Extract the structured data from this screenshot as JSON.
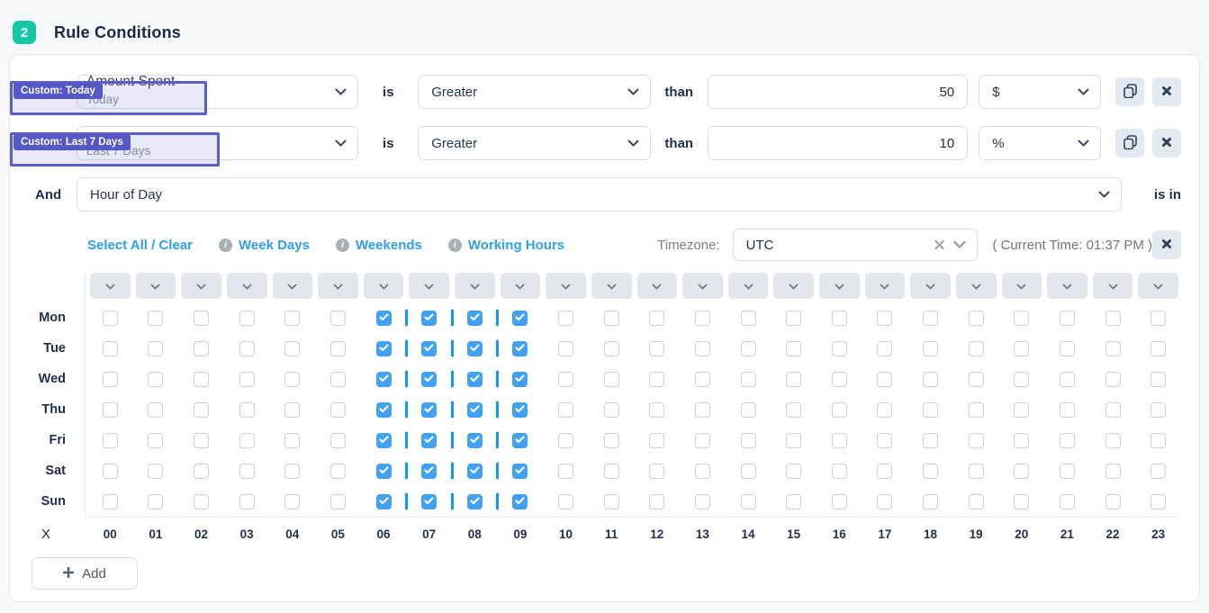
{
  "colors": {
    "accent_teal": "#14c7a5",
    "overlay_purple": "#5558c7",
    "link_blue": "#2f9fe8",
    "checked_blue": "#41a1f2",
    "separator_blue": "#1a97ea"
  },
  "header": {
    "step": "2",
    "title": "Rule Conditions"
  },
  "conditions": [
    {
      "connector": "",
      "badge": "Custom: Today",
      "metric": "Amount Spent",
      "metric_period": "Today",
      "is_label": "is",
      "operator": "Greater",
      "than_label": "than",
      "value": "50",
      "unit": "$"
    },
    {
      "connector": "And",
      "badge": "Custom: Last 7 Days",
      "metric": "",
      "metric_period": "Last 7 Days",
      "is_label": "is",
      "operator": "Greater",
      "than_label": "than",
      "value": "10",
      "unit": "%"
    }
  ],
  "hour_condition": {
    "connector": "And",
    "metric": "Hour of Day",
    "suffix_label": "is in"
  },
  "scheduler": {
    "select_all_label": "Select All / Clear",
    "presets": [
      {
        "label": "Week Days"
      },
      {
        "label": "Weekends"
      },
      {
        "label": "Working Hours"
      }
    ],
    "info_icon_glyph": "i",
    "timezone_label": "Timezone:",
    "timezone_value": "UTC",
    "current_time": "( Current Time: 01:37 PM )",
    "axis_corner": "X",
    "days": [
      "Mon",
      "Tue",
      "Wed",
      "Thu",
      "Fri",
      "Sat",
      "Sun"
    ],
    "hours": [
      "00",
      "01",
      "02",
      "03",
      "04",
      "05",
      "06",
      "07",
      "08",
      "09",
      "10",
      "11",
      "12",
      "13",
      "14",
      "15",
      "16",
      "17",
      "18",
      "19",
      "20",
      "21",
      "22",
      "23"
    ],
    "checked_hours": [
      6,
      7,
      8,
      9
    ]
  },
  "add_button": {
    "label": "Add"
  }
}
